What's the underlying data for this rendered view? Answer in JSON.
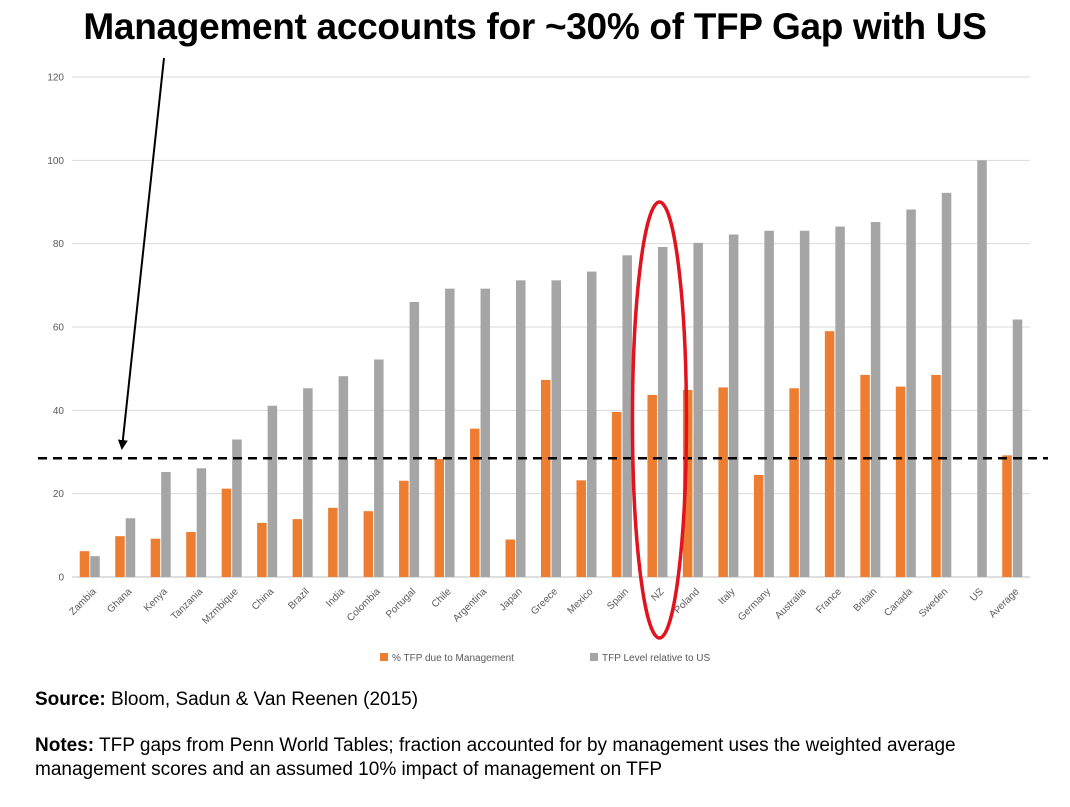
{
  "title": "Management accounts for ~30% of TFP Gap with US",
  "chart_data": {
    "type": "bar",
    "categories": [
      "Zambia",
      "Ghana",
      "Kenya",
      "Tanzania",
      "Mzmbique",
      "China",
      "Brazil",
      "India",
      "Colombia",
      "Portugal",
      "Chile",
      "Argentina",
      "Japan",
      "Greece",
      "Mexico",
      "Spain",
      "NZ",
      "Poland",
      "Italy",
      "Germany",
      "Australia",
      "France",
      "Britain",
      "Canada",
      "Sweden",
      "US",
      "Average"
    ],
    "series": [
      {
        "name": "% TFP due to Management",
        "color": "#ED7D31",
        "values": [
          6.2,
          9.8,
          9.2,
          10.8,
          21.2,
          13.0,
          13.9,
          16.6,
          15.8,
          23.1,
          28.3,
          35.6,
          9.0,
          47.3,
          23.2,
          39.6,
          43.7,
          44.9,
          45.5,
          24.5,
          45.3,
          59.0,
          48.5,
          45.7,
          48.5,
          null,
          29.2
        ]
      },
      {
        "name": "TFP Level relative to US",
        "color": "#A5A5A5",
        "values": [
          5.0,
          14.1,
          25.2,
          26.1,
          33.0,
          41.1,
          45.3,
          48.2,
          52.2,
          66.0,
          69.2,
          69.2,
          71.2,
          71.2,
          73.3,
          77.2,
          79.2,
          80.2,
          82.2,
          83.1,
          83.1,
          84.1,
          85.2,
          88.2,
          92.2,
          100.0,
          61.8
        ]
      }
    ],
    "ylim": [
      0,
      120
    ],
    "yticks": [
      0,
      20,
      40,
      60,
      80,
      100,
      120
    ],
    "reference_line": 28.5,
    "xlabel": "",
    "ylabel": "",
    "legend_position": "bottom",
    "annotations": [
      "arrow pointing to dashed line at ~28%",
      "red ellipse highlighting NZ"
    ]
  },
  "source_label": "Source:",
  "source_text": " Bloom, Sadun & Van Reenen (2015)",
  "notes_label": "Notes:",
  "notes_text": " TFP gaps from Penn World Tables; fraction accounted for by management uses the weighted average management scores and an assumed 10% impact of management on TFP"
}
